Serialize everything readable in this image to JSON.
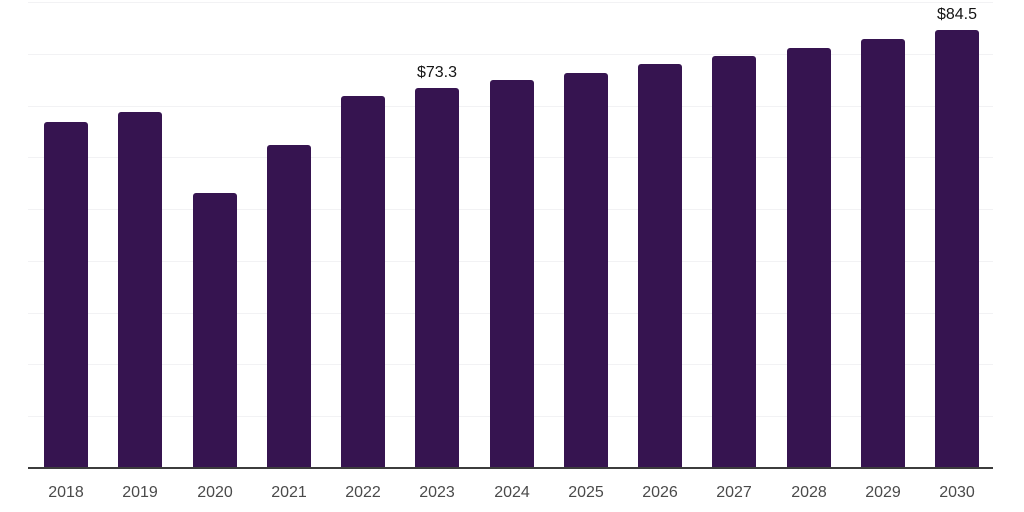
{
  "chart_data": {
    "type": "bar",
    "title": "",
    "xlabel": "",
    "ylabel": "",
    "categories": [
      "2018",
      "2019",
      "2020",
      "2021",
      "2022",
      "2023",
      "2024",
      "2025",
      "2026",
      "2027",
      "2028",
      "2029",
      "2030"
    ],
    "values": [
      66.8,
      68.7,
      53.1,
      62.4,
      71.8,
      73.3,
      74.9,
      76.3,
      78.0,
      79.6,
      81.2,
      82.9,
      84.5
    ],
    "data_labels": {
      "2023": "$73.3",
      "2030": "$84.5"
    },
    "ylim": [
      0,
      90
    ],
    "grid_step": 10,
    "grid": true,
    "legend": false,
    "bar_color": "#361450",
    "gridline_color": "#f2f2f4",
    "axis_line_color": "#3c3c3c",
    "tick_label_color": "#4a4a4a",
    "value_label_color": "#141414"
  }
}
